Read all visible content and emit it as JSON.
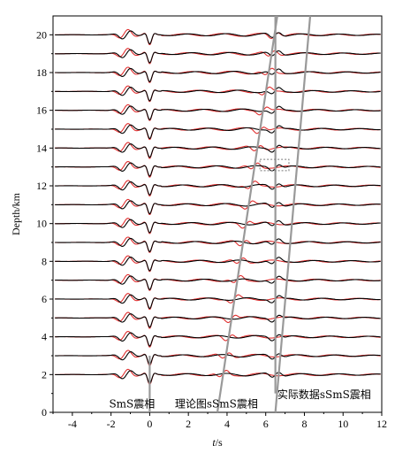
{
  "chart_data": {
    "type": "line",
    "xlabel_italic": "t",
    "xlabel_rest": "/s",
    "ylabel": "Depth/km",
    "xlim": [
      -5,
      12
    ],
    "ylim": [
      0,
      21
    ],
    "x_ticks": [
      -4,
      -2,
      0,
      2,
      4,
      6,
      8,
      10,
      12
    ],
    "y_ticks": [
      0,
      2,
      4,
      6,
      8,
      10,
      12,
      14,
      16,
      18,
      20
    ],
    "trace_depths": [
      2,
      3,
      4,
      5,
      6,
      7,
      8,
      9,
      10,
      11,
      12,
      13,
      14,
      15,
      16,
      17,
      18,
      19,
      20
    ],
    "series": [
      {
        "name": "实际数据",
        "color": "#000000"
      },
      {
        "name": "理论图",
        "color": "#e03030"
      }
    ],
    "lines": {
      "sms_vertical": {
        "x": 0,
        "y_from": 0,
        "y_to": 3
      },
      "ssms_observed": {
        "x_from": 6.5,
        "y_from": 0,
        "x_to": 8.3,
        "y_to": 21
      },
      "ssms_synthetic": {
        "x_from": 3.5,
        "y_from": 0,
        "x_to": 6.6,
        "y_to": 21
      },
      "observed_vertical": {
        "x": 6.5,
        "y_from": 1,
        "y_to": 21
      }
    },
    "highlight_box": {
      "x_from": 5.7,
      "x_to": 7.2,
      "y_from": 12.8,
      "y_to": 13.4
    },
    "annotations": [
      {
        "text": "SmS震相",
        "x": -2.1,
        "y": 0.25
      },
      {
        "text": "理论图sSmS震相",
        "x": 1.3,
        "y": 0.25
      },
      {
        "text": "实际数据sSmS震相",
        "x": 6.6,
        "y": 0.75
      }
    ]
  }
}
